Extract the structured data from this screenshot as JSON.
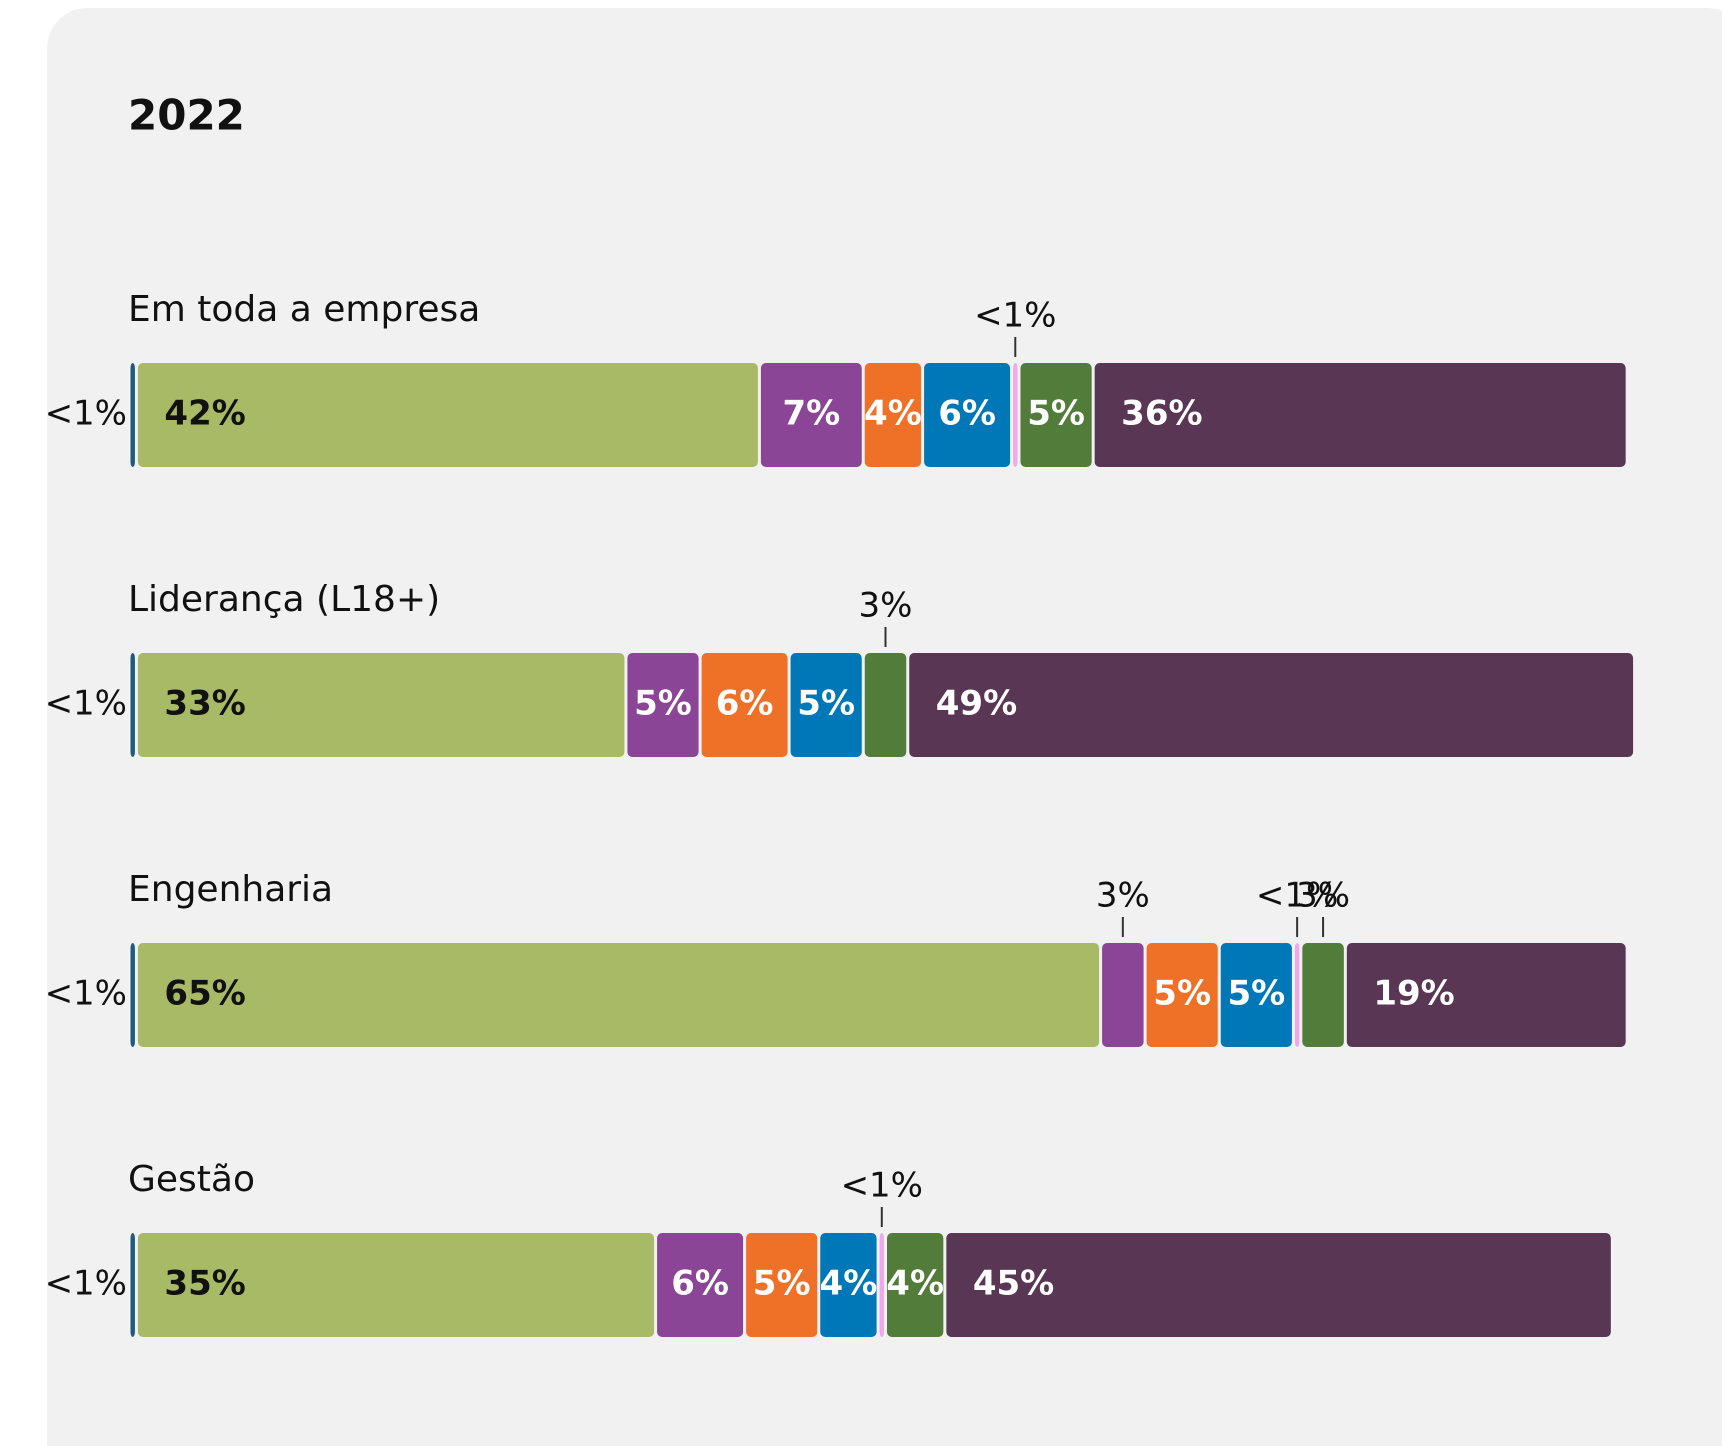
{
  "chart_data": {
    "type": "stacked-bar-horizontal",
    "title": "2022",
    "categories": [
      "Em toda a empresa",
      "Liderança (L18+)",
      "Engenharia",
      "Gestão"
    ],
    "xlim": [
      0,
      102
    ],
    "series": [
      {
        "color": "#1f5a7f",
        "values": [
          0.5,
          0.5,
          0.5,
          0.5
        ],
        "value_labels": [
          "<1%",
          "<1%",
          "<1%",
          "<1%"
        ]
      },
      {
        "color": "#a8ba66",
        "values": [
          42,
          33,
          65,
          35
        ],
        "value_labels": [
          "42%",
          "33%",
          "65%",
          "35%"
        ]
      },
      {
        "color": "#8b4596",
        "values": [
          7,
          5,
          3,
          6
        ],
        "value_labels": [
          "7%",
          "5%",
          "3%",
          "6%"
        ]
      },
      {
        "color": "#ef7128",
        "values": [
          4,
          6,
          5,
          5
        ],
        "value_labels": [
          "4%",
          "6%",
          "5%",
          "5%"
        ]
      },
      {
        "color": "#0077b6",
        "values": [
          6,
          5,
          5,
          4
        ],
        "value_labels": [
          "6%",
          "5%",
          "5%",
          "4%"
        ]
      },
      {
        "color": "#f0a8ec",
        "values": [
          0.5,
          null,
          0.5,
          0.5
        ],
        "value_labels": [
          "<1%",
          null,
          "<1%",
          "<1%"
        ]
      },
      {
        "color": "#527c3a",
        "values": [
          5,
          3,
          3,
          4
        ],
        "value_labels": [
          "5%",
          "3%",
          "3%",
          "4%"
        ]
      },
      {
        "color": "#583654",
        "values": [
          36,
          49,
          19,
          45
        ],
        "value_labels": [
          "36%",
          "49%",
          "19%",
          "45%"
        ]
      }
    ]
  }
}
